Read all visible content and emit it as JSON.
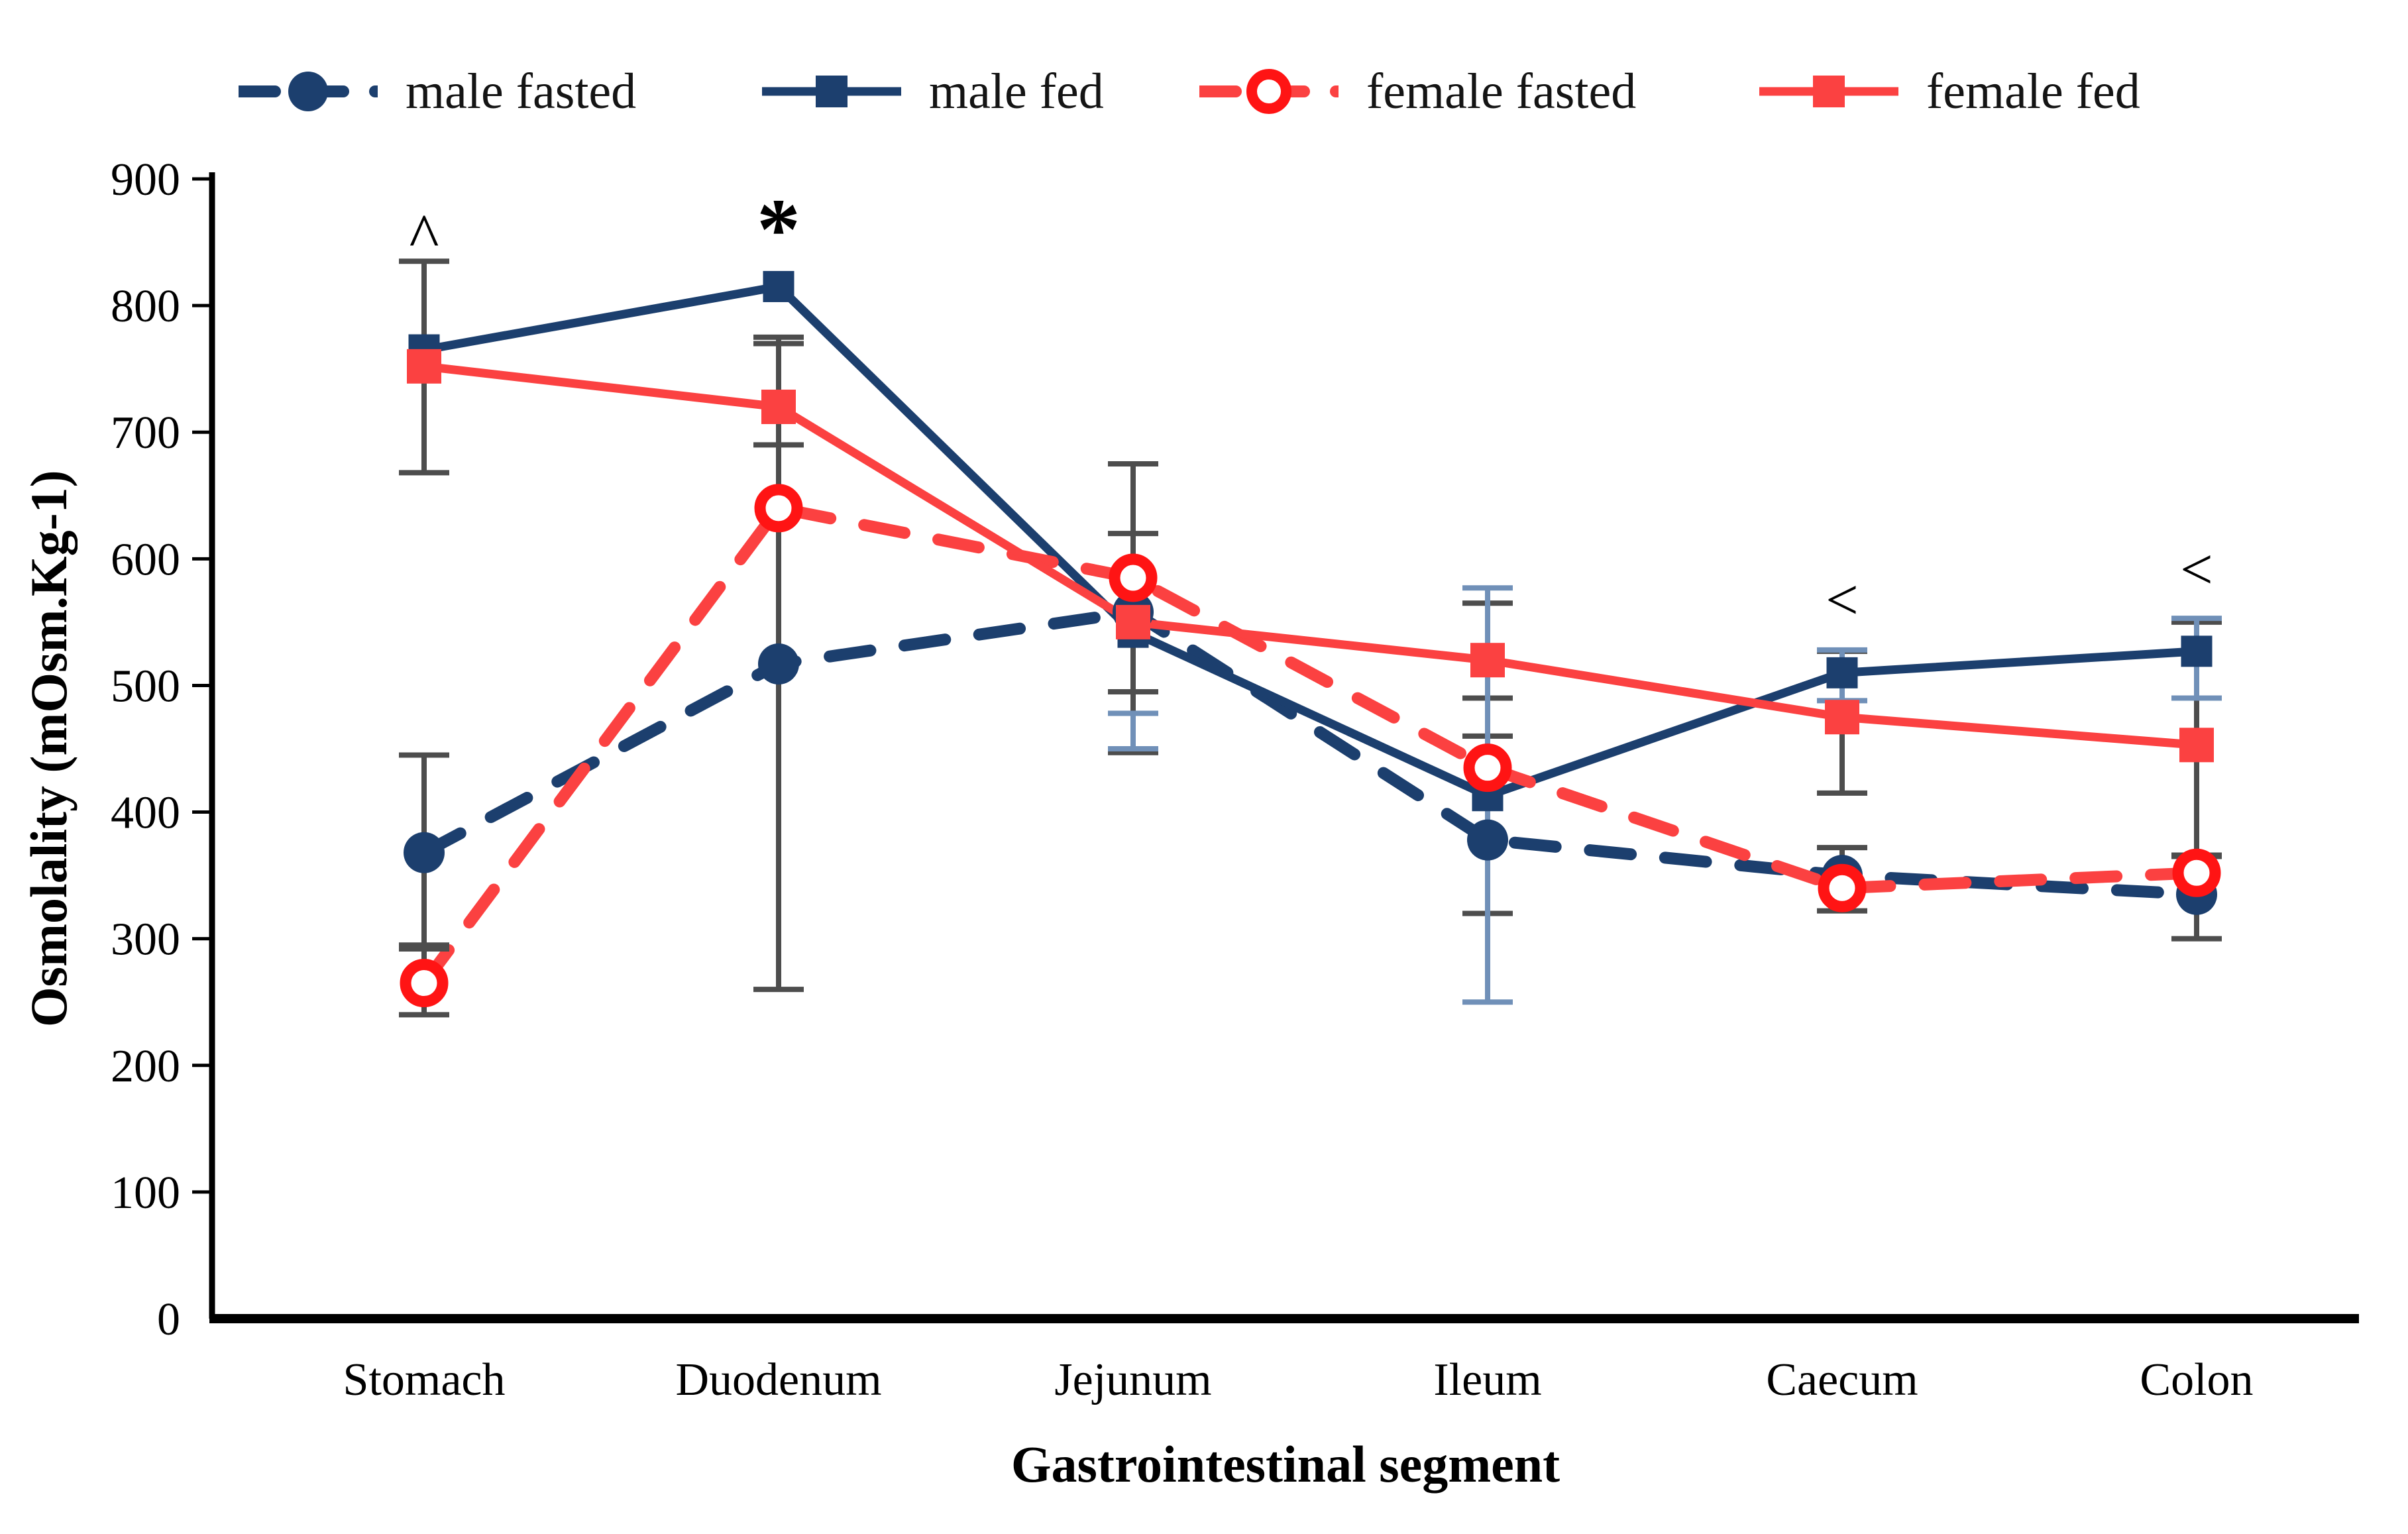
{
  "chart_data": {
    "type": "line",
    "title": "",
    "xlabel": "Gastrointestinal segment",
    "ylabel": "Osmolality (mOsm.Kg-1)",
    "categories": [
      "Stomach",
      "Duodenum",
      "Jejunum",
      "Ileum",
      "Caecum",
      "Colon"
    ],
    "ylim": [
      0,
      900
    ],
    "y_ticks": [
      0,
      100,
      200,
      300,
      400,
      500,
      600,
      700,
      800,
      900
    ],
    "grid": false,
    "legend_position": "top",
    "axis_color": "#000000",
    "error_bar_gray": "#4D4D4D",
    "error_bar_blue": "#7090B8",
    "series": [
      {
        "name": "male fasted",
        "line_color": "#1C3F6E",
        "marker_color": "#1C3F6E",
        "style": "dashed",
        "marker": "circle",
        "values": [
          368,
          517,
          558,
          378,
          350,
          335
        ]
      },
      {
        "name": "male fed",
        "line_color": "#1C3F6E",
        "marker_color": "#1C3F6E",
        "style": "solid",
        "marker": "square",
        "values": [
          765,
          815,
          542,
          413,
          510,
          527
        ]
      },
      {
        "name": "female fasted",
        "line_color": "#FB4141",
        "marker_color": "#FF1414",
        "style": "dashed",
        "marker": "circle",
        "values": [
          265,
          640,
          585,
          435,
          340,
          352
        ]
      },
      {
        "name": "female fed",
        "line_color": "#FB4141",
        "marker_color": "#FB4141",
        "style": "solid",
        "marker": "square",
        "values": [
          752,
          720,
          550,
          520,
          475,
          453
        ]
      }
    ],
    "error_bars": [
      {
        "category": 0,
        "low": 668,
        "high": 835,
        "color": "#4D4D4D"
      },
      {
        "category": 0,
        "low": 295,
        "high": 445,
        "color": "#4D4D4D"
      },
      {
        "category": 0,
        "low": 240,
        "high": 292,
        "color": "#4D4D4D"
      },
      {
        "category": 1,
        "low": 690,
        "high": 770,
        "color": "#4D4D4D"
      },
      {
        "category": 1,
        "low": 260,
        "high": 775,
        "color": "#4D4D4D"
      },
      {
        "category": 2,
        "low": 495,
        "high": 675,
        "color": "#4D4D4D"
      },
      {
        "category": 2,
        "low": 447,
        "high": 620,
        "color": "#4D4D4D"
      },
      {
        "category": 2,
        "low": 450,
        "high": 478,
        "color": "#7090B8"
      },
      {
        "category": 3,
        "low": 460,
        "high": 565,
        "color": "#4D4D4D"
      },
      {
        "category": 3,
        "low": 320,
        "high": 490,
        "color": "#4D4D4D"
      },
      {
        "category": 3,
        "low": 250,
        "high": 577,
        "color": "#7090B8"
      },
      {
        "category": 4,
        "low": 415,
        "high": 527,
        "color": "#4D4D4D"
      },
      {
        "category": 4,
        "low": 322,
        "high": 372,
        "color": "#4D4D4D"
      },
      {
        "category": 4,
        "low": 488,
        "high": 528,
        "color": "#7090B8"
      },
      {
        "category": 5,
        "low": 365,
        "high": 550,
        "color": "#4D4D4D"
      },
      {
        "category": 5,
        "low": 300,
        "high": 366,
        "color": "#4D4D4D"
      },
      {
        "category": 5,
        "low": 490,
        "high": 553,
        "color": "#7090B8"
      }
    ],
    "annotations": [
      {
        "category": 0,
        "text": "^",
        "value": 868
      },
      {
        "category": 1,
        "text": "*",
        "value": 879
      },
      {
        "category": 4,
        "text": "<",
        "value": 568
      },
      {
        "category": 5,
        "text": "<",
        "value": 592
      }
    ]
  },
  "legend": {
    "items": [
      "male fasted",
      "male fed",
      "female fasted",
      "female fed"
    ]
  }
}
